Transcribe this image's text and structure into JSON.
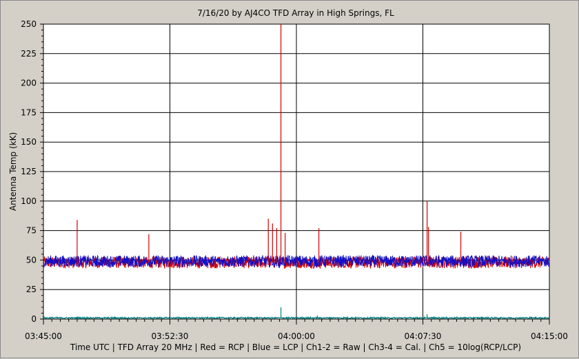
{
  "chart_data": {
    "type": "line",
    "title": "7/16/20  by  AJ4CO TFD Array  in  High Springs, FL",
    "ylabel": "Antenna Temp  (kK)",
    "xlabel": "Time UTC | TFD Array 20 MHz | Red = RCP | Blue = LCP | Ch1-2 = Raw | Ch3-4 = Cal. | Ch5 = 10log(RCP/LCP)",
    "ylim": [
      0,
      250
    ],
    "yticks": [
      0,
      25,
      50,
      75,
      100,
      125,
      150,
      175,
      200,
      225,
      250
    ],
    "xlim": [
      "03:45:00",
      "04:15:00"
    ],
    "xticks": [
      "03:45:00",
      "03:52:30",
      "04:00:00",
      "04:07:30",
      "04:15:00"
    ],
    "grid": true,
    "series": [
      {
        "name": "Red = RCP",
        "color": "#d40000",
        "baseline": 48,
        "noise": 5,
        "spikes": [
          {
            "t": "03:47:00",
            "y": 84
          },
          {
            "t": "03:51:15",
            "y": 72
          },
          {
            "t": "03:58:20",
            "y": 85
          },
          {
            "t": "03:58:35",
            "y": 81
          },
          {
            "t": "03:58:50",
            "y": 77
          },
          {
            "t": "03:59:05",
            "y": 250
          },
          {
            "t": "03:59:20",
            "y": 73
          },
          {
            "t": "04:01:20",
            "y": 77
          },
          {
            "t": "04:07:45",
            "y": 100
          },
          {
            "t": "04:07:50",
            "y": 78
          },
          {
            "t": "04:09:45",
            "y": 74
          }
        ]
      },
      {
        "name": "Blue = LCP",
        "color": "#1010c8",
        "baseline": 49,
        "noise": 5,
        "spikes": []
      },
      {
        "name": "Ch5 = 10log(RCP/LCP)",
        "color": "#008080",
        "baseline": 1,
        "noise": 1,
        "spikes": [
          {
            "t": "03:59:05",
            "y": 10
          },
          {
            "t": "04:01:15",
            "y": 3
          },
          {
            "t": "04:07:45",
            "y": 4
          }
        ]
      }
    ]
  }
}
